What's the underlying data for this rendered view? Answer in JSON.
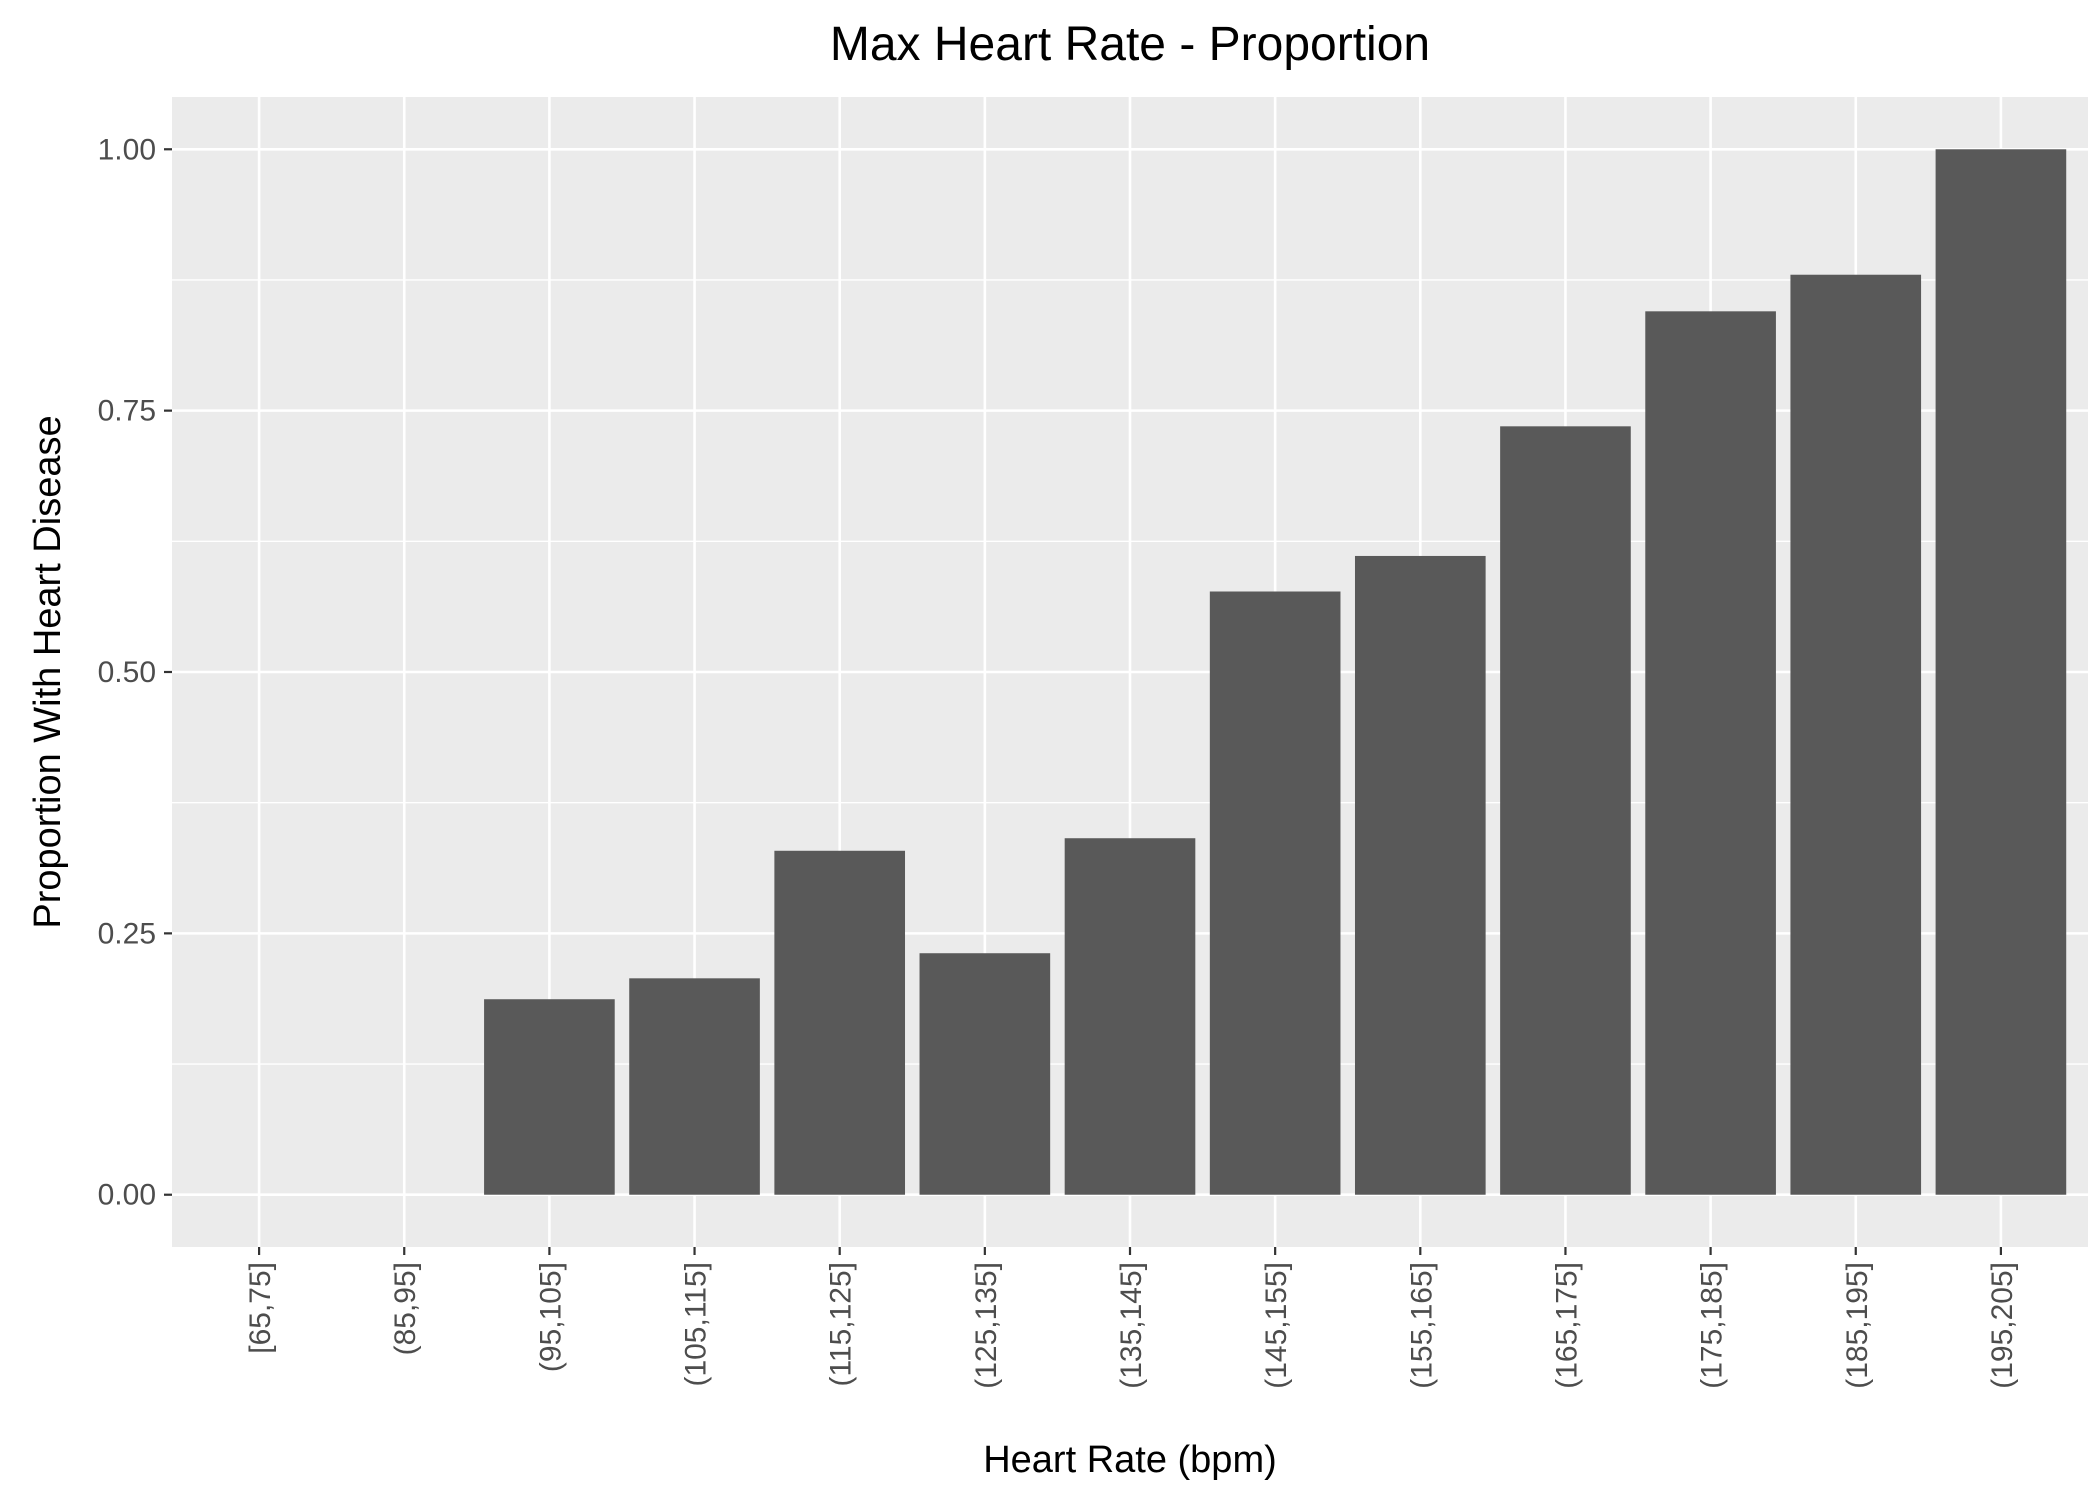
{
  "chart_data": {
    "type": "bar",
    "title": "Max Heart Rate - Proportion",
    "xlabel": "Heart Rate (bpm)",
    "ylabel": "Proportion With Heart Disease",
    "categories": [
      "[65,75]",
      "(85,95]",
      "(95,105]",
      "(105,115]",
      "(115,125]",
      "(125,135]",
      "(135,145]",
      "(145,155]",
      "(155,165]",
      "(165,175]",
      "(175,185]",
      "(185,195]",
      "(195,205]"
    ],
    "values": [
      0,
      0,
      0.187,
      0.207,
      0.329,
      0.231,
      0.341,
      0.577,
      0.611,
      0.735,
      0.845,
      0.88,
      1.0
    ],
    "ylim": [
      -0.05,
      1.05
    ],
    "yticks": [
      0,
      0.25,
      0.5,
      0.75,
      1.0
    ],
    "ytick_labels": [
      "0.00",
      "0.25",
      "0.50",
      "0.75",
      "1.00"
    ],
    "grid": true,
    "colors": {
      "panel": "#ebebeb",
      "grid": "#ffffff",
      "bar": "#595959"
    }
  }
}
